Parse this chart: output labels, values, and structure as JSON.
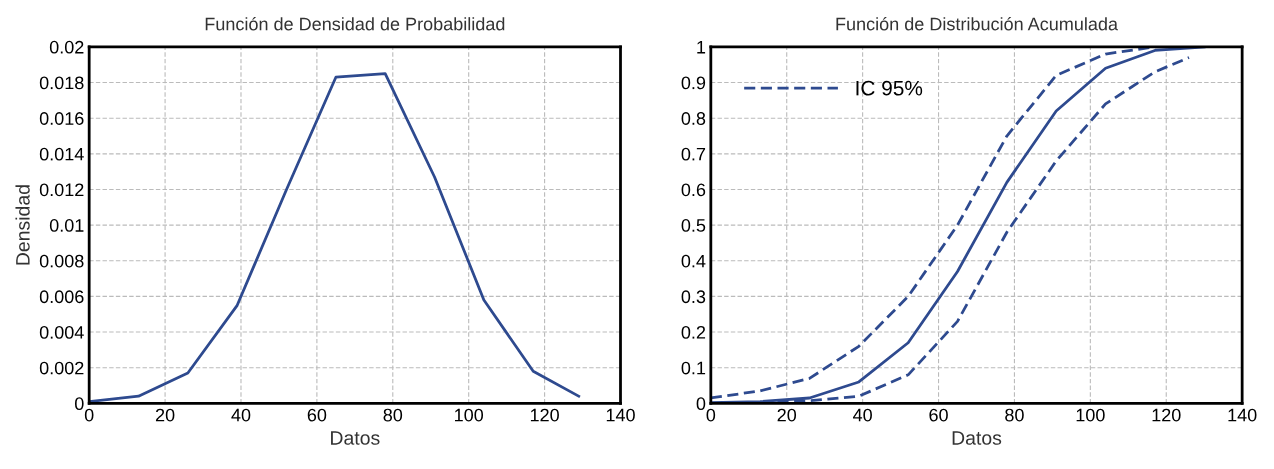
{
  "chart_data": [
    {
      "type": "line",
      "title": "Función de Densidad de Probabilidad",
      "xlabel": "Datos",
      "ylabel": "Densidad",
      "xlim": [
        0,
        140
      ],
      "ylim": [
        0,
        0.02
      ],
      "xticks": [
        0,
        20,
        40,
        60,
        80,
        100,
        120,
        140
      ],
      "yticks": [
        0,
        0.002,
        0.004,
        0.006,
        0.008,
        0.01,
        0.012,
        0.014,
        0.016,
        0.018,
        0.02
      ],
      "grid": true,
      "line_style": "solid",
      "x": [
        0,
        13,
        26,
        39,
        52,
        65,
        78,
        91,
        104,
        117,
        129
      ],
      "series": [
        {
          "color": "#2e4a8f",
          "values": [
            0.0001,
            0.0004,
            0.0017,
            0.0055,
            0.012,
            0.0183,
            0.0185,
            0.0127,
            0.0058,
            0.0018,
            0.0004
          ]
        }
      ]
    },
    {
      "type": "line",
      "title": "Función de Distribución Acumulada",
      "xlabel": "Datos",
      "xlim": [
        0,
        140
      ],
      "ylim": [
        0,
        1
      ],
      "xticks": [
        0,
        20,
        40,
        60,
        80,
        100,
        120,
        140
      ],
      "yticks": [
        0,
        0.1,
        0.2,
        0.3,
        0.4,
        0.5,
        0.6,
        0.7,
        0.8,
        0.9,
        1
      ],
      "grid": true,
      "legend": "top left",
      "x": [
        0,
        13,
        26,
        39,
        52,
        65,
        78,
        91,
        104,
        117,
        130
      ],
      "series": [
        {
          "color": "#2e4a8f",
          "line_style": "solid",
          "values": [
            0.002,
            0.005,
            0.015,
            0.06,
            0.17,
            0.37,
            0.62,
            0.82,
            0.94,
            0.99,
            1.0
          ]
        },
        {
          "name": "IC 95%",
          "color": "#2e4a8f",
          "line_style": "dashed",
          "x": [
            0,
            13,
            26,
            39,
            52,
            65,
            78,
            91,
            104,
            117,
            126
          ],
          "values": [
            0.015,
            0.035,
            0.07,
            0.16,
            0.3,
            0.5,
            0.75,
            0.92,
            0.98,
            1.0,
            1.0
          ]
        },
        {
          "color": "#2e4a8f",
          "line_style": "dashed",
          "x": [
            0,
            13,
            26,
            39,
            52,
            65,
            78,
            91,
            104,
            117,
            126
          ],
          "values": [
            0.0,
            0.002,
            0.007,
            0.02,
            0.08,
            0.23,
            0.48,
            0.68,
            0.84,
            0.93,
            0.97
          ]
        }
      ]
    }
  ]
}
